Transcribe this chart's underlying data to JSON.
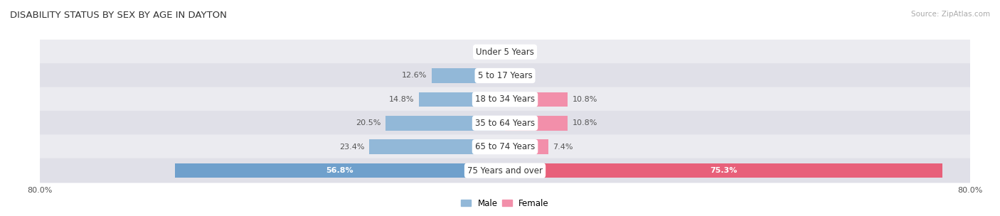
{
  "title": "DISABILITY STATUS BY SEX BY AGE IN DAYTON",
  "source": "Source: ZipAtlas.com",
  "categories": [
    "Under 5 Years",
    "5 to 17 Years",
    "18 to 34 Years",
    "35 to 64 Years",
    "65 to 74 Years",
    "75 Years and over"
  ],
  "male_values": [
    0.0,
    12.6,
    14.8,
    20.5,
    23.4,
    56.8
  ],
  "female_values": [
    0.0,
    0.0,
    10.8,
    10.8,
    7.4,
    75.3
  ],
  "male_color": "#92b8d8",
  "female_color": "#f28faa",
  "male_color_large": "#6fa0cc",
  "female_color_large": "#e8607a",
  "axis_max": 80.0,
  "bar_height": 0.62,
  "label_fontsize": 8.0,
  "title_fontsize": 9.5,
  "source_fontsize": 7.5,
  "legend_fontsize": 8.5,
  "tick_fontsize": 8.0,
  "cat_fontsize": 8.5,
  "row_bg_even": "#ebebf0",
  "row_bg_odd": "#e0e0e8",
  "row_separator": "#d0d0da"
}
